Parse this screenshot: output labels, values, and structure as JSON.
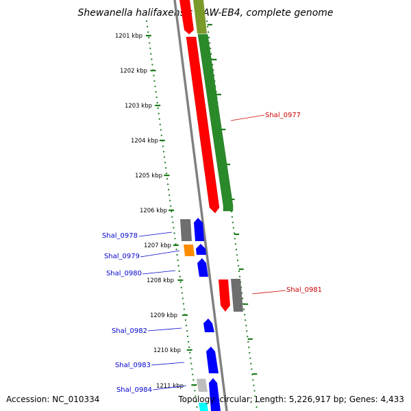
{
  "title": "Shewanella halifaxensis HAW-EB4, complete genome",
  "footer": {
    "accession": "Accession: NC_010334",
    "topology": "Topology: circular; Length: 5,226,917 bp; Genes: 4,433"
  },
  "kbp_labels": [
    "1201 kbp",
    "1202 kbp",
    "1203 kbp",
    "1204 kbp",
    "1205 kbp",
    "1206 kbp",
    "1207 kbp",
    "1208 kbp",
    "1209 kbp",
    "1210 kbp",
    "1211 kbp"
  ],
  "genes": [
    {
      "name": "Shal_0977",
      "color": "#cc0000"
    },
    {
      "name": "Shal_0978",
      "color": "#0000cc"
    },
    {
      "name": "Shal_0979",
      "color": "#0000cc"
    },
    {
      "name": "Shal_0980",
      "color": "#0000cc"
    },
    {
      "name": "Shal_0981",
      "color": "#cc0000"
    },
    {
      "name": "Shal_0982",
      "color": "#0000cc"
    },
    {
      "name": "Shal_0983",
      "color": "#0000cc"
    },
    {
      "name": "Shal_0984",
      "color": "#0000cc"
    }
  ],
  "colors": {
    "backbone": "#808080",
    "tick": "#1a7a1a",
    "red": "#ff0000",
    "green": "#2a8a2a",
    "olive": "#7a9a2a",
    "gray": "#6e6e6e",
    "lightgray": "#bdbdbd",
    "blue": "#0000ff",
    "orange": "#ff8c00",
    "cyan": "#00ffff"
  }
}
